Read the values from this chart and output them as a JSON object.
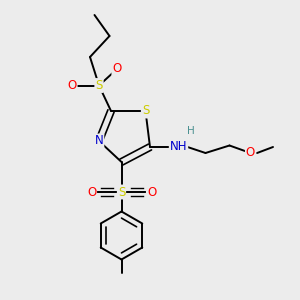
{
  "background_color": "#ececec",
  "atom_colors": {
    "C": "#000000",
    "N": "#0000cc",
    "O": "#ff0000",
    "S": "#cccc00",
    "H": "#4a9090"
  },
  "bond_color": "#000000",
  "figsize": [
    3.0,
    3.0
  ],
  "dpi": 100,
  "xlim": [
    0,
    10
  ],
  "ylim": [
    0,
    10
  ]
}
